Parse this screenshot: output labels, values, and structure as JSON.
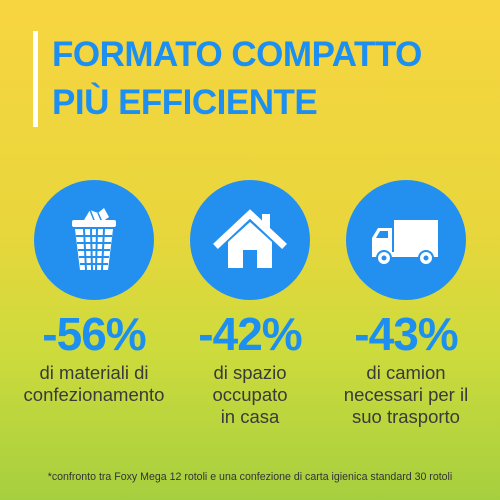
{
  "title": {
    "line1": "FORMATO COMPATTO",
    "line2": "PIÙ EFFICIENTE"
  },
  "stats": [
    {
      "icon": "trash-basket-icon",
      "percent": "-56%",
      "lines": [
        "di materiali di",
        "confezionamento"
      ]
    },
    {
      "icon": "house-icon",
      "percent": "-42%",
      "lines": [
        "di spazio",
        "occupato",
        "in casa"
      ]
    },
    {
      "icon": "truck-icon",
      "percent": "-43%",
      "lines": [
        "di camion",
        "necessari per il",
        "suo trasporto"
      ]
    }
  ],
  "footnote": "*confronto tra Foxy Mega 12 rotoli e una confezione di carta igienica standard 30 rotoli",
  "colors": {
    "accent_blue": "#1d8ff0",
    "circle_blue": "#2390f0",
    "background_top": "#f7d540",
    "background_bottom": "#a6cf3f"
  }
}
